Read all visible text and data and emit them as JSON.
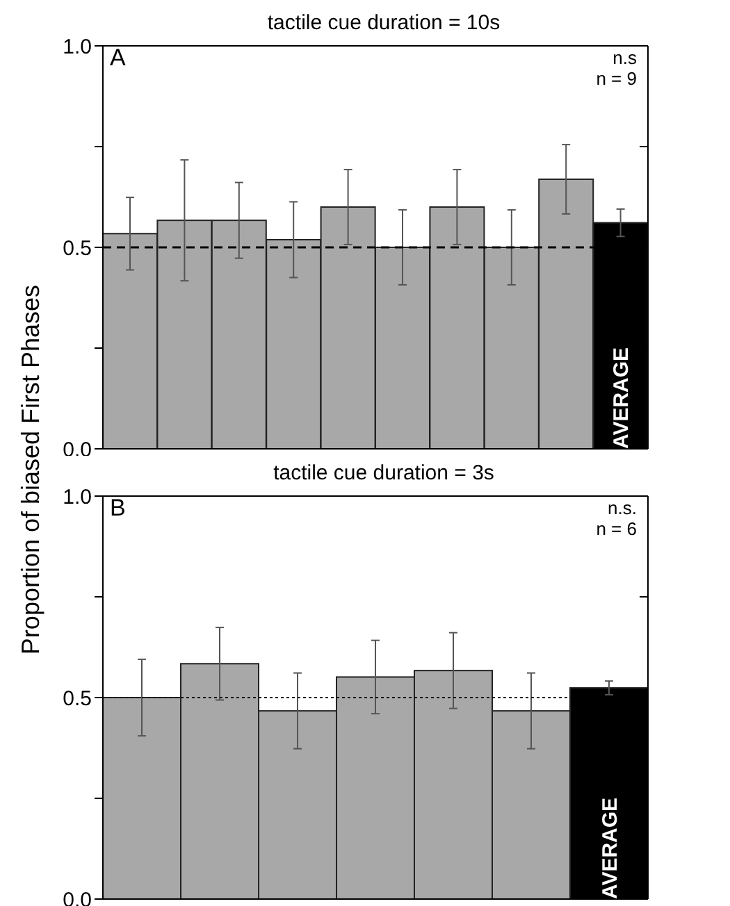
{
  "chart_data": [
    {
      "type": "bar",
      "title": "tactile cue duration = 10s",
      "ylabel": "Proportion of biased First Phases",
      "categories": [
        null,
        null,
        null,
        null,
        null,
        null,
        null,
        null,
        null,
        "AVERAGE"
      ],
      "values": [
        0.534,
        0.567,
        0.567,
        0.519,
        0.6,
        0.5,
        0.6,
        0.5,
        0.669,
        0.561
      ],
      "errors": [
        0.09,
        0.15,
        0.094,
        0.094,
        0.093,
        0.093,
        0.093,
        0.093,
        0.086,
        0.034
      ],
      "colors": [
        "#a8a8a8",
        "#a8a8a8",
        "#a8a8a8",
        "#a8a8a8",
        "#a8a8a8",
        "#a8a8a8",
        "#a8a8a8",
        "#a8a8a8",
        "#a8a8a8",
        "#000000"
      ],
      "ylim": [
        0,
        1
      ],
      "yticks": [
        {
          "value": 0,
          "label": "0.0"
        },
        {
          "value": 0.25,
          "label": null
        },
        {
          "value": 0.5,
          "label": "0.5"
        },
        {
          "value": 0.75,
          "label": null
        },
        {
          "value": 1,
          "label": "1.0"
        }
      ],
      "ref_lines": [
        {
          "axis": "y",
          "value": 0.5,
          "line_style": "dashed"
        }
      ],
      "annotations": [
        "A",
        "n.s",
        "n = 9"
      ],
      "grid": false,
      "legend": false
    },
    {
      "type": "bar",
      "title": "tactile cue duration = 3s",
      "categories": [
        null,
        null,
        null,
        null,
        null,
        null,
        "AVERAGE"
      ],
      "values": [
        0.5,
        0.584,
        0.467,
        0.551,
        0.567,
        0.467,
        0.524
      ],
      "errors": [
        0.095,
        0.09,
        0.094,
        0.091,
        0.094,
        0.094,
        0.017
      ],
      "colors": [
        "#a8a8a8",
        "#a8a8a8",
        "#a8a8a8",
        "#a8a8a8",
        "#a8a8a8",
        "#a8a8a8",
        "#000000"
      ],
      "ylim": [
        0,
        1
      ],
      "yticks": [
        {
          "value": 0,
          "label": "0.0"
        },
        {
          "value": 0.25,
          "label": null
        },
        {
          "value": 0.5,
          "label": "0.5"
        },
        {
          "value": 0.75,
          "label": null
        },
        {
          "value": 1,
          "label": "1.0"
        }
      ],
      "ref_lines": [
        {
          "axis": "y",
          "value": 0.5,
          "line_style": "dotted"
        }
      ],
      "annotations": [
        "B",
        "n.s.",
        "n = 6"
      ],
      "grid": false,
      "legend": false
    }
  ]
}
